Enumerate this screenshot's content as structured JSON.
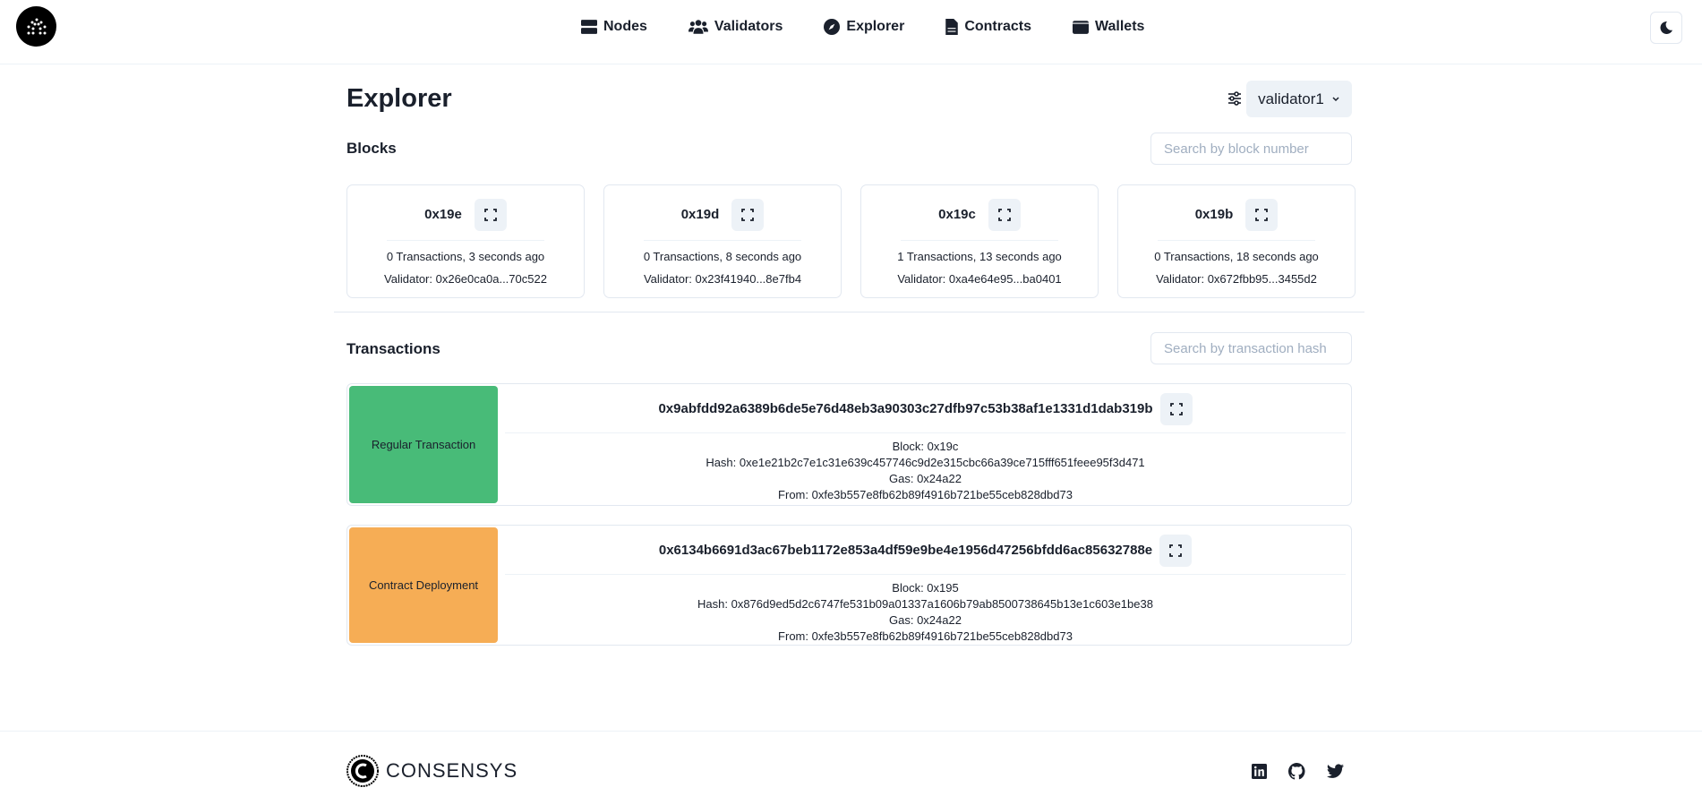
{
  "header": {
    "nav": [
      {
        "label": "Nodes",
        "icon": "server-icon"
      },
      {
        "label": "Validators",
        "icon": "users-icon"
      },
      {
        "label": "Explorer",
        "icon": "compass-icon"
      },
      {
        "label": "Contracts",
        "icon": "file-icon"
      },
      {
        "label": "Wallets",
        "icon": "wallet-icon"
      }
    ],
    "theme_icon": "moon-icon"
  },
  "page": {
    "title": "Explorer",
    "node_select": "validator1"
  },
  "blocks": {
    "heading": "Blocks",
    "search_placeholder": "Search by block number",
    "items": [
      {
        "number": "0x19e",
        "summary": "0 Transactions, 3 seconds ago",
        "validator": "Validator: 0x26e0ca0a...70c522"
      },
      {
        "number": "0x19d",
        "summary": "0 Transactions, 8 seconds ago",
        "validator": "Validator: 0x23f41940...8e7fb4"
      },
      {
        "number": "0x19c",
        "summary": "1 Transactions, 13 seconds ago",
        "validator": "Validator: 0xa4e64e95...ba0401"
      },
      {
        "number": "0x19b",
        "summary": "0 Transactions, 18 seconds ago",
        "validator": "Validator: 0x672fbb95...3455d2"
      }
    ]
  },
  "transactions": {
    "heading": "Transactions",
    "search_placeholder": "Search by transaction hash",
    "items": [
      {
        "type": "Regular Transaction",
        "color": "#48bb78",
        "hash": "0x9abfdd92a6389b6de5e76d48eb3a90303c27dfb97c53b38af1e1331d1dab319b",
        "block": "Block: 0x19c",
        "hash_line": "Hash: 0xe1e21b2c7e1c31e639c457746c9d2e315cbc66a39ce715fff651feee95f3d471",
        "gas": "Gas: 0x24a22",
        "from": "From: 0xfe3b557e8fb62b89f4916b721be55ceb828dbd73"
      },
      {
        "type": "Contract Deployment",
        "color": "#f6ad55",
        "hash": "0x6134b6691d3ac67beb1172e853a4df59e9be4e1956d47256bfdd6ac85632788e",
        "block": "Block: 0x195",
        "hash_line": "Hash: 0x876d9ed5d2c6747fe531b09a01337a1606b79ab8500738645b13e1c603e1be38",
        "gas": "Gas: 0x24a22",
        "from": "From: 0xfe3b557e8fb62b89f4916b721be55ceb828dbd73"
      }
    ]
  },
  "footer": {
    "brand": "CONSENSYS",
    "social": [
      "linkedin-icon",
      "github-icon",
      "twitter-icon"
    ]
  }
}
